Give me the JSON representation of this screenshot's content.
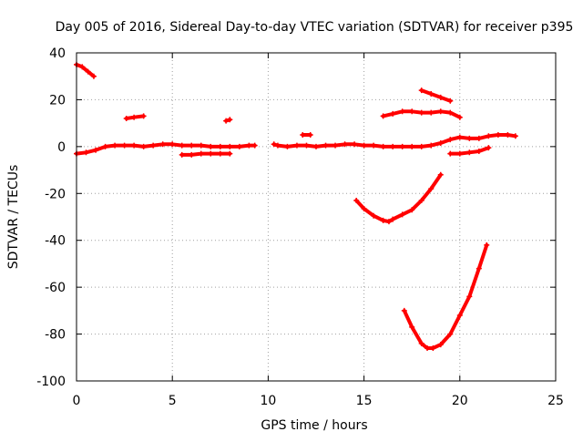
{
  "chart_data": {
    "type": "scatter",
    "title": "Day 005 of 2016, Sidereal Day-to-day VTEC variation (SDTVAR) for receiver p395",
    "xlabel": "GPS time / hours",
    "ylabel": "SDTVAR / TECUs",
    "xlim": [
      0,
      25
    ],
    "ylim": [
      -100,
      40
    ],
    "xticks": [
      0,
      5,
      10,
      15,
      20,
      25
    ],
    "yticks": [
      -100,
      -80,
      -60,
      -40,
      -20,
      0,
      20,
      40
    ],
    "xtick_labels": [
      "0",
      "5",
      "10",
      "15",
      "20",
      "25"
    ],
    "ytick_labels": [
      "-100",
      "-80",
      "-60",
      "-40",
      "-20",
      "0",
      "20",
      "40"
    ],
    "grid": true,
    "legend": "none",
    "color": "#ff0000",
    "series": [
      {
        "x": [
          0.0,
          0.3,
          0.6,
          0.9
        ],
        "y": [
          35,
          34,
          32,
          30
        ]
      },
      {
        "x": [
          2.6,
          3.0,
          3.5
        ],
        "y": [
          12,
          12.5,
          13
        ]
      },
      {
        "x": [
          7.8,
          8.0
        ],
        "y": [
          11,
          11.5
        ]
      },
      {
        "x": [
          11.8,
          12.2
        ],
        "y": [
          5,
          5
        ]
      },
      {
        "x": [
          0.0,
          0.5,
          1.0,
          1.5,
          2.0,
          2.5,
          3.0,
          3.5,
          4.0,
          4.5,
          5.0,
          5.5,
          6.0,
          6.5,
          7.0,
          7.5,
          8.0,
          8.5,
          9.0,
          9.3
        ],
        "y": [
          -3,
          -2.5,
          -1.5,
          0,
          0.5,
          0.5,
          0.5,
          0,
          0.5,
          1,
          1,
          0.5,
          0.5,
          0.5,
          0,
          0,
          0,
          0,
          0.5,
          0.5
        ]
      },
      {
        "x": [
          5.5,
          6.0,
          6.5,
          7.0,
          7.5,
          8.0
        ],
        "y": [
          -3.5,
          -3.5,
          -3,
          -3,
          -3,
          -3
        ]
      },
      {
        "x": [
          10.3,
          10.5,
          11.0,
          11.5,
          12.0,
          12.5,
          13.0,
          13.5,
          14.0,
          14.5,
          15.0,
          15.5,
          16.0,
          16.5,
          17.0,
          17.5,
          18.0,
          18.5,
          19.0,
          19.5,
          20.0,
          20.5,
          21.0,
          21.5,
          22.0,
          22.5,
          22.9
        ],
        "y": [
          1,
          0.5,
          0,
          0.5,
          0.5,
          0,
          0.5,
          0.5,
          1,
          1,
          0.5,
          0.5,
          0,
          0,
          0,
          0,
          0,
          0.5,
          1.5,
          3,
          4,
          3.5,
          3.5,
          4.5,
          5,
          5,
          4.5
        ]
      },
      {
        "x": [
          19.5,
          20.0,
          20.5,
          21.0,
          21.5
        ],
        "y": [
          -3,
          -3,
          -2.5,
          -2,
          -0.5
        ]
      },
      {
        "x": [
          16.0,
          16.5,
          17.0,
          17.5,
          18.0,
          18.5,
          19.0,
          19.5,
          20.0
        ],
        "y": [
          13,
          14,
          15,
          15,
          14.5,
          14.5,
          15,
          14.5,
          12.5
        ]
      },
      {
        "x": [
          18.0,
          18.5,
          19.0,
          19.5
        ],
        "y": [
          24,
          22.5,
          21,
          19.5
        ]
      },
      {
        "x": [
          14.6,
          15.0,
          15.5,
          16.0,
          16.3,
          16.5,
          17.0,
          17.5,
          18.0,
          18.5,
          19.0
        ],
        "y": [
          -23,
          -26.5,
          -29.5,
          -31.5,
          -32,
          -31,
          -29,
          -27,
          -23,
          -18,
          -12
        ]
      },
      {
        "x": [
          17.1,
          17.5,
          18.0,
          18.3,
          18.6,
          19.0,
          19.5,
          20.0,
          20.5,
          21.0,
          21.4
        ],
        "y": [
          -70,
          -77,
          -84,
          -86,
          -86,
          -84.5,
          -80,
          -72,
          -64,
          -52,
          -42
        ]
      }
    ]
  }
}
